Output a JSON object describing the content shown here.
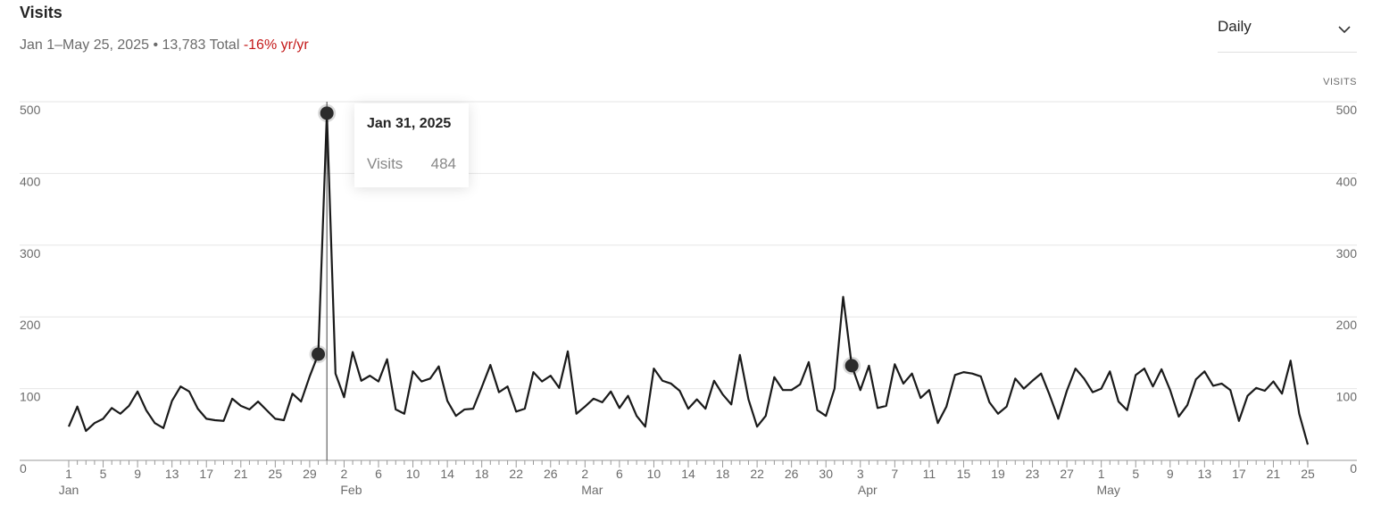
{
  "chart_data": {
    "type": "line",
    "title": "Visits",
    "subtitle": "Jan 1–May 25, 2025 • 13,783 Total",
    "change": "-16% yr/yr",
    "dropdown": "Daily",
    "y2_label": "VISITS",
    "tooltip": {
      "title": "Jan 31, 2025",
      "label": "Visits"
    },
    "categories": [
      "1",
      null,
      null,
      null,
      "5",
      null,
      null,
      null,
      "9",
      null,
      null,
      null,
      "13",
      null,
      null,
      null,
      "17",
      null,
      null,
      null,
      "21",
      null,
      null,
      null,
      "25",
      null,
      null,
      null,
      "29",
      null,
      null,
      null,
      "2",
      null,
      null,
      null,
      "6",
      null,
      null,
      null,
      "10",
      null,
      null,
      null,
      "14",
      null,
      null,
      null,
      "18",
      null,
      null,
      null,
      "22",
      null,
      null,
      null,
      "26",
      null,
      null,
      null,
      "2",
      null,
      null,
      null,
      "6",
      null,
      null,
      null,
      "10",
      null,
      null,
      null,
      "14",
      null,
      null,
      null,
      "18",
      null,
      null,
      null,
      "22",
      null,
      null,
      null,
      "26",
      null,
      null,
      null,
      "30",
      null,
      null,
      null,
      "3",
      null,
      null,
      null,
      "7",
      null,
      null,
      null,
      "11",
      null,
      null,
      null,
      "15",
      null,
      null,
      null,
      "19",
      null,
      null,
      null,
      "23",
      null,
      null,
      null,
      "27",
      null,
      null,
      null,
      "1",
      null,
      null,
      null,
      "5",
      null,
      null,
      null,
      "9",
      null,
      null,
      null,
      "13",
      null,
      null,
      null,
      "17",
      null,
      null,
      null,
      "21",
      null,
      null,
      null,
      "25"
    ],
    "x_sublabels": [
      "Jan",
      null,
      null,
      null,
      null,
      null,
      null,
      null,
      null,
      null,
      null,
      null,
      null,
      null,
      null,
      null,
      null,
      null,
      null,
      null,
      null,
      null,
      null,
      null,
      null,
      null,
      null,
      null,
      null,
      null,
      null,
      null,
      "Feb",
      null,
      null,
      null,
      null,
      null,
      null,
      null,
      null,
      null,
      null,
      null,
      null,
      null,
      null,
      null,
      null,
      null,
      null,
      null,
      null,
      null,
      null,
      null,
      null,
      null,
      null,
      null,
      "Mar",
      null,
      null,
      null,
      null,
      null,
      null,
      null,
      null,
      null,
      null,
      null,
      null,
      null,
      null,
      null,
      null,
      null,
      null,
      null,
      null,
      null,
      null,
      null,
      null,
      null,
      null,
      null,
      null,
      null,
      null,
      null,
      "Apr",
      null,
      null,
      null,
      null,
      null,
      null,
      null,
      null,
      null,
      null,
      null,
      null,
      null,
      null,
      null,
      null,
      null,
      null,
      null,
      null,
      null,
      null,
      null,
      null,
      null,
      null,
      null,
      "May",
      null,
      null,
      null,
      null,
      null,
      null,
      null,
      null,
      null,
      null,
      null,
      null,
      null,
      null,
      null,
      null,
      null,
      null,
      null,
      null,
      null,
      null,
      null,
      null
    ],
    "series": [
      {
        "name": "Visits",
        "color": "#1a1a1a",
        "values": [
          47,
          75,
          41,
          52,
          58,
          73,
          65,
          76,
          96,
          70,
          52,
          45,
          83,
          103,
          96,
          72,
          58,
          56,
          55,
          86,
          76,
          71,
          82,
          70,
          58,
          56,
          93,
          82,
          117,
          148,
          484,
          121,
          88,
          151,
          111,
          118,
          110,
          141,
          71,
          65,
          124,
          110,
          114,
          131,
          83,
          62,
          71,
          72,
          102,
          133,
          95,
          103,
          68,
          72,
          123,
          110,
          118,
          101,
          152,
          65,
          75,
          86,
          81,
          96,
          73,
          90,
          62,
          47,
          128,
          111,
          107,
          97,
          72,
          85,
          72,
          111,
          92,
          78,
          147,
          85,
          47,
          62,
          116,
          98,
          98,
          106,
          137,
          70,
          62,
          100,
          228,
          132,
          98,
          132,
          73,
          76,
          134,
          107,
          121,
          87,
          98,
          52,
          75,
          119,
          123,
          121,
          117,
          81,
          65,
          75,
          114,
          100,
          111,
          121,
          91,
          58,
          97,
          128,
          114,
          95,
          100,
          124,
          82,
          70,
          119,
          128,
          103,
          127,
          98,
          61,
          77,
          113,
          124,
          104,
          107,
          98,
          55,
          90,
          101,
          97,
          110,
          93,
          139,
          65,
          22
        ]
      }
    ],
    "ylim": [
      0,
      500
    ],
    "yticks": [
      0,
      100,
      200,
      300,
      400,
      500
    ],
    "y2lim": [
      0,
      500
    ],
    "y2ticks": [
      0,
      100,
      200,
      300,
      400,
      500
    ],
    "grid": true
  }
}
